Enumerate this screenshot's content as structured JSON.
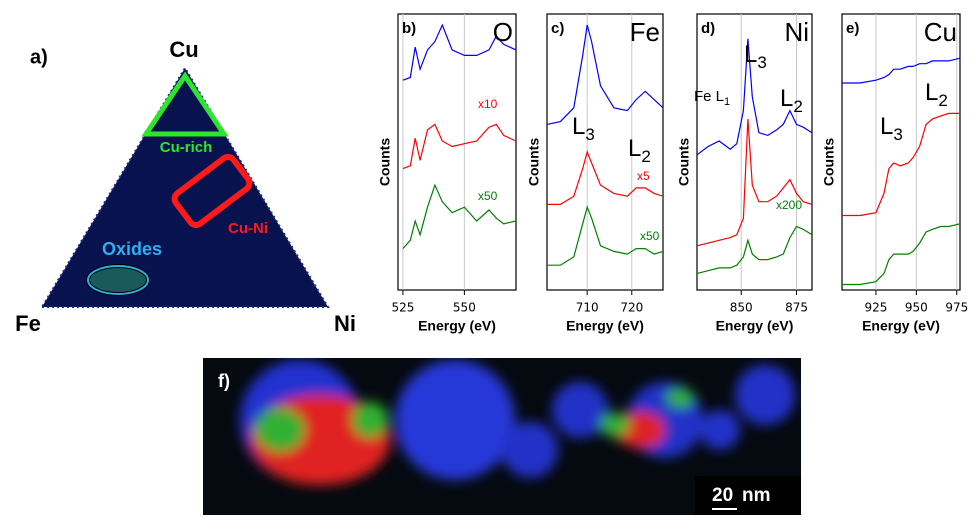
{
  "panel_a": {
    "label": "a)",
    "vertex_top": "Cu",
    "vertex_left": "Fe",
    "vertex_right": "Ni",
    "region_1": "Cu-rich",
    "region_2": "Cu-Ni",
    "region_3": "Oxides"
  },
  "chart_data": [
    {
      "type": "line",
      "label": "b)",
      "element": "O",
      "xlabel": "Energy (eV)",
      "ylabel": "Counts",
      "xlim": [
        523,
        571
      ],
      "xticks": [
        525,
        550
      ],
      "ylim": [
        0,
        10
      ],
      "grid": true,
      "x": [
        525,
        528,
        530,
        532,
        535,
        538,
        541,
        545,
        550,
        555,
        560,
        563,
        566,
        571
      ],
      "series": [
        {
          "color": "#0000ff",
          "values": [
            7.6,
            7.7,
            8.8,
            8.0,
            8.7,
            9.0,
            9.6,
            8.7,
            8.5,
            8.5,
            8.7,
            9.2,
            8.9,
            8.7
          ]
        },
        {
          "color": "#ff0000",
          "values": [
            4.4,
            4.5,
            5.5,
            4.7,
            5.8,
            6.0,
            5.4,
            5.2,
            5.3,
            5.4,
            5.9,
            6.0,
            5.6,
            5.4
          ]
        },
        {
          "color": "#008000",
          "values": [
            1.5,
            1.8,
            2.5,
            2.0,
            3.0,
            3.8,
            3.2,
            2.8,
            3.0,
            2.5,
            2.9,
            2.6,
            2.4,
            2.5
          ]
        }
      ],
      "annotations": [
        {
          "text": "x10",
          "color": "#ff0000"
        },
        {
          "text": "x50",
          "color": "#008000"
        }
      ]
    },
    {
      "type": "line",
      "label": "c)",
      "element": "Fe",
      "xlabel": "Energy (eV)",
      "ylabel": "Counts",
      "xlim": [
        701,
        727
      ],
      "xticks": [
        710,
        720
      ],
      "ylim": [
        0,
        10
      ],
      "grid": true,
      "x": [
        701,
        704,
        707,
        709,
        710,
        711,
        713,
        716,
        719,
        721,
        723,
        725,
        727
      ],
      "series": [
        {
          "color": "#0000ff",
          "values": [
            6.0,
            6.1,
            6.6,
            8.5,
            9.6,
            9.0,
            7.4,
            6.6,
            6.5,
            6.9,
            7.2,
            6.9,
            6.6
          ]
        },
        {
          "color": "#ff0000",
          "values": [
            3.1,
            3.1,
            3.4,
            4.4,
            5.0,
            4.6,
            3.8,
            3.5,
            3.4,
            3.7,
            3.7,
            3.5,
            3.4
          ]
        },
        {
          "color": "#008000",
          "values": [
            0.9,
            0.9,
            1.2,
            2.4,
            3.0,
            2.6,
            1.6,
            1.4,
            1.3,
            1.5,
            1.5,
            1.3,
            1.4
          ]
        }
      ],
      "annotations": [
        {
          "text": "L",
          "sub": "3",
          "color": "#000000"
        },
        {
          "text": "L",
          "sub": "2",
          "color": "#000000"
        },
        {
          "text": "x5",
          "color": "#ff0000"
        },
        {
          "text": "x50",
          "color": "#008000"
        }
      ]
    },
    {
      "type": "line",
      "label": "d)",
      "element": "Ni",
      "xlabel": "Energy (eV)",
      "ylabel": "Counts",
      "xlim": [
        830,
        882
      ],
      "xticks": [
        850,
        875
      ],
      "ylim": [
        0,
        10
      ],
      "grid": true,
      "x": [
        830,
        835,
        840,
        845,
        848,
        851,
        853,
        855,
        858,
        862,
        866,
        869,
        872,
        875,
        878,
        882
      ],
      "series": [
        {
          "color": "#0000ff",
          "values": [
            4.9,
            5.2,
            5.4,
            5.1,
            5.3,
            6.5,
            9.1,
            7.0,
            5.7,
            5.6,
            5.8,
            6.0,
            6.5,
            6.0,
            5.9,
            5.7
          ]
        },
        {
          "color": "#ff0000",
          "values": [
            1.6,
            1.7,
            1.8,
            1.9,
            2.0,
            2.6,
            6.2,
            3.8,
            3.2,
            3.2,
            3.4,
            3.7,
            4.0,
            3.5,
            3.2,
            3.1
          ]
        },
        {
          "color": "#008000",
          "values": [
            0.6,
            0.7,
            0.8,
            0.8,
            0.9,
            1.2,
            1.8,
            1.3,
            1.1,
            1.1,
            1.2,
            1.3,
            1.9,
            2.3,
            2.2,
            2.0
          ]
        }
      ],
      "annotations": [
        {
          "text": "Fe L",
          "sub": "1",
          "color": "#000000"
        },
        {
          "text": "L",
          "sub": "3",
          "color": "#000000"
        },
        {
          "text": "L",
          "sub": "2",
          "color": "#000000"
        },
        {
          "text": "x200",
          "color": "#008000"
        }
      ]
    },
    {
      "type": "line",
      "label": "e)",
      "element": "Cu",
      "xlabel": "Energy (eV)",
      "ylabel": "Counts",
      "xlim": [
        904,
        977
      ],
      "xticks": [
        925,
        950,
        975
      ],
      "ylim": [
        0,
        10
      ],
      "grid": true,
      "x": [
        904,
        915,
        925,
        930,
        933,
        936,
        940,
        945,
        948,
        952,
        956,
        960,
        965,
        970,
        977
      ],
      "series": [
        {
          "color": "#0000ff",
          "values": [
            7.5,
            7.5,
            7.6,
            7.7,
            7.8,
            8.0,
            8.0,
            8.1,
            8.1,
            8.2,
            8.2,
            8.3,
            8.3,
            8.3,
            8.4
          ]
        },
        {
          "color": "#ff0000",
          "values": [
            2.7,
            2.7,
            2.8,
            3.5,
            4.4,
            4.6,
            4.5,
            4.6,
            4.8,
            5.2,
            6.0,
            6.2,
            6.3,
            6.4,
            6.4
          ]
        },
        {
          "color": "#008000",
          "values": [
            0.2,
            0.2,
            0.3,
            0.6,
            1.1,
            1.3,
            1.3,
            1.3,
            1.4,
            1.7,
            2.1,
            2.2,
            2.3,
            2.3,
            2.4
          ]
        }
      ],
      "annotations": [
        {
          "text": "L",
          "sub": "3",
          "color": "#000000"
        },
        {
          "text": "L",
          "sub": "2",
          "color": "#000000"
        }
      ]
    }
  ],
  "panel_f": {
    "label": "f)",
    "scale_value": "20",
    "scale_unit": "nm"
  }
}
